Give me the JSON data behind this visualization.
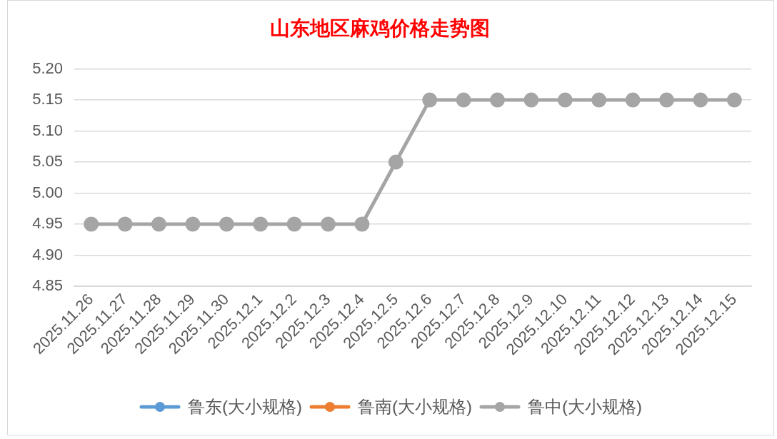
{
  "chart_data": {
    "type": "line",
    "title": "山东地区麻鸡价格走势图",
    "categories": [
      "2025.11.26",
      "2025.11.27",
      "2025.11.28",
      "2025.11.29",
      "2025.11.30",
      "2025.12.1",
      "2025.12.2",
      "2025.12.3",
      "2025.12.4",
      "2025.12.5",
      "2025.12.6",
      "2025.12.7",
      "2025.12.8",
      "2025.12.9",
      "2025.12.10",
      "2025.12.11",
      "2025.12.12",
      "2025.12.13",
      "2025.12.14",
      "2025.12.15"
    ],
    "series": [
      {
        "name": "鲁东(大小规格)",
        "color": "#5b9bd5",
        "values": [
          null,
          null,
          null,
          null,
          null,
          null,
          null,
          null,
          null,
          null,
          null,
          null,
          null,
          null,
          null,
          null,
          null,
          null,
          null,
          null
        ]
      },
      {
        "name": "鲁南(大小规格)",
        "color": "#ed7d31",
        "values": [
          null,
          null,
          null,
          null,
          null,
          null,
          null,
          null,
          null,
          null,
          null,
          null,
          null,
          null,
          null,
          null,
          null,
          null,
          null,
          null
        ]
      },
      {
        "name": "鲁中(大小规格)",
        "color": "#a5a5a5",
        "values": [
          4.95,
          4.95,
          4.95,
          4.95,
          4.95,
          4.95,
          4.95,
          4.95,
          4.95,
          5.05,
          5.15,
          5.15,
          5.15,
          5.15,
          5.15,
          5.15,
          5.15,
          5.15,
          5.15,
          5.15
        ]
      }
    ],
    "ylim": [
      4.85,
      5.2
    ],
    "yticks": [
      4.85,
      {
        "value": 4.9,
        "label": "4.90"
      },
      4.95,
      {
        "value": 5.0,
        "label": "5.00"
      },
      5.05,
      {
        "value": 5.1,
        "label": "5.10"
      },
      5.15,
      {
        "value": 5.2,
        "label": "5.20"
      }
    ],
    "grid": "y",
    "legend": "bottom",
    "marker": "circle",
    "line_style": "solid"
  }
}
